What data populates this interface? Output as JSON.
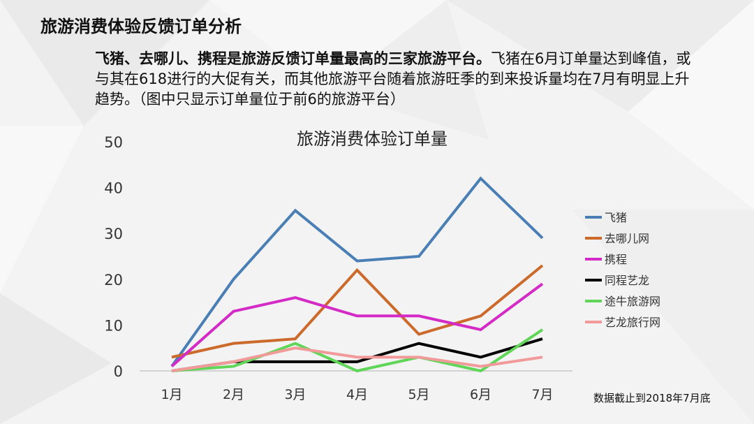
{
  "page_title": "旅游消费体验反馈订单分析",
  "summary": {
    "bold": "飞猪、去哪儿、携程是旅游反馈订单量最高的三家旅游平台。",
    "text": "飞猪在6月订单量达到峰值，或与其在618进行的大促有关，而其他旅游平台随着旅游旺季的到来投诉量均在7月有明显上升趋势。（图中只显示订单量位于前6的旅游平台）"
  },
  "footnote": "数据截止到2018年7月底",
  "chart_data": {
    "type": "line",
    "title": "旅游消费体验订单量",
    "xlabel": "",
    "ylabel": "",
    "categories": [
      "1月",
      "2月",
      "3月",
      "4月",
      "5月",
      "6月",
      "7月"
    ],
    "ylim": [
      0,
      50
    ],
    "yticks": [
      0,
      10,
      20,
      30,
      40,
      50
    ],
    "grid": false,
    "legend_position": "right",
    "series": [
      {
        "name": "飞猪",
        "color": "#4a7fb5",
        "values": [
          1,
          20,
          35,
          24,
          25,
          42,
          29
        ]
      },
      {
        "name": "去哪儿网",
        "color": "#cc6a2c",
        "values": [
          3,
          6,
          7,
          22,
          8,
          12,
          23
        ]
      },
      {
        "name": "携程",
        "color": "#d42bc6",
        "values": [
          1,
          13,
          16,
          12,
          12,
          9,
          19
        ]
      },
      {
        "name": "同程艺龙",
        "color": "#000000",
        "values": [
          0,
          2,
          2,
          2,
          6,
          3,
          7
        ]
      },
      {
        "name": "途牛旅游网",
        "color": "#5fd657",
        "values": [
          0,
          1,
          6,
          0,
          3,
          0,
          9
        ]
      },
      {
        "name": "艺龙旅行网",
        "color": "#f29a9a",
        "values": [
          0,
          2,
          5,
          3,
          3,
          1,
          3
        ]
      }
    ]
  }
}
